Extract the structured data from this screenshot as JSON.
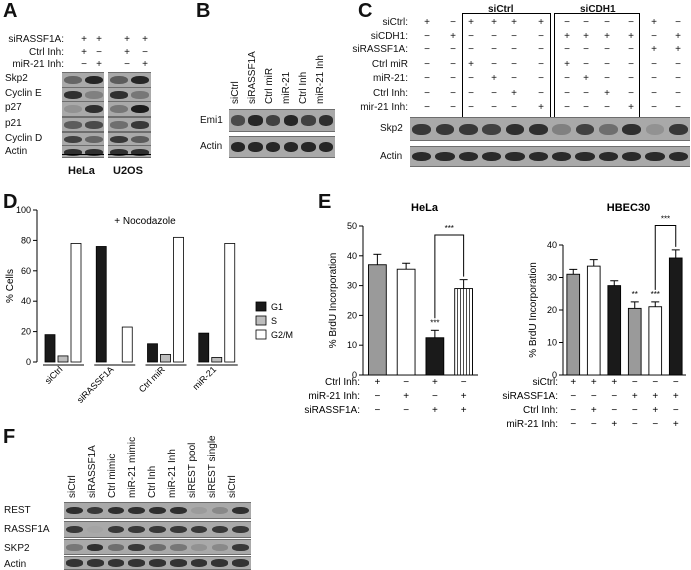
{
  "panels": {
    "a": "A",
    "b": "B",
    "c": "C",
    "d": "D",
    "e": "E",
    "f": "F"
  },
  "panel_a": {
    "conditions": [
      "siRASSF1A:",
      "Ctrl Inh:",
      "miR-21 Inh:"
    ],
    "symbols": [
      [
        "+",
        "+",
        "+",
        "+"
      ],
      [
        "+",
        "−",
        "+",
        "−"
      ],
      [
        "−",
        "+",
        "−",
        "+"
      ]
    ],
    "rows": [
      "Skp2",
      "Cyclin E",
      "p27",
      "p21",
      "Cyclin D",
      "Actin"
    ],
    "cell_lines": [
      "HeLa",
      "U2OS"
    ]
  },
  "panel_b": {
    "lanes": [
      "siCtrl",
      "siRASSF1A",
      "Ctrl miR",
      "miR-21",
      "Ctrl Inh",
      "miR-21 Inh"
    ],
    "rows": [
      "Emi1",
      "Actin"
    ]
  },
  "panel_c": {
    "group_labels": [
      "siCtrl",
      "siCDH1"
    ],
    "conditions": [
      "siCtrl:",
      "siCDH1:",
      "siRASSF1A:",
      "Ctrl miR",
      "miR-21:",
      "Ctrl Inh:",
      "mir-21 Inh:"
    ],
    "symbols": [
      [
        "+",
        "−",
        "+",
        "+",
        "+",
        "+",
        "−",
        "−",
        "−",
        "−",
        "+",
        "−"
      ],
      [
        "−",
        "+",
        "−",
        "−",
        "−",
        "−",
        "+",
        "+",
        "+",
        "+",
        "−",
        "+"
      ],
      [
        "−",
        "−",
        "−",
        "−",
        "−",
        "−",
        "−",
        "−",
        "−",
        "−",
        "+",
        "+"
      ],
      [
        "−",
        "−",
        "+",
        "−",
        "−",
        "−",
        "+",
        "−",
        "−",
        "−",
        "−",
        "−"
      ],
      [
        "−",
        "−",
        "−",
        "+",
        "−",
        "−",
        "−",
        "+",
        "−",
        "−",
        "−",
        "−"
      ],
      [
        "−",
        "−",
        "−",
        "−",
        "+",
        "−",
        "−",
        "−",
        "+",
        "−",
        "−",
        "−"
      ],
      [
        "−",
        "−",
        "−",
        "−",
        "−",
        "+",
        "−",
        "−",
        "−",
        "+",
        "−",
        "−"
      ]
    ],
    "rows": [
      "Skp2",
      "Actin"
    ]
  },
  "panel_f": {
    "lanes": [
      "siCtrl",
      "siRASSF1A",
      "Ctrl mimic",
      "miR-21 mimic",
      "Ctrl Inh",
      "miR-21 Inh",
      "siREST pool",
      "siREST single",
      "siCtrl"
    ],
    "rows": [
      "REST",
      "RASSF1A",
      "SKP2",
      "Actin"
    ]
  },
  "chart_data": [
    {
      "type": "bar",
      "annotation": "+ Nocodazole",
      "ylabel": "% Cells",
      "ylim": [
        0,
        100
      ],
      "yticks": [
        "0",
        "20",
        "40",
        "60",
        "80",
        "100"
      ],
      "categories": [
        "siCtrl",
        "siRASSF1A",
        "Ctrl miR",
        "miR-21"
      ],
      "series": [
        {
          "name": "G1",
          "values": [
            18,
            76,
            12,
            19
          ],
          "color": "#1a1a1a"
        },
        {
          "name": "S",
          "values": [
            4,
            0,
            5,
            3
          ],
          "color": "#bdbdbd"
        },
        {
          "name": "G2/M",
          "values": [
            78,
            23,
            82,
            78
          ],
          "color": "#ffffff"
        }
      ],
      "legend": "right"
    },
    {
      "type": "bar",
      "title": "HeLa",
      "ylabel": "% BrdU Incorporation",
      "ylim": [
        0,
        50
      ],
      "yticks": [
        "0",
        "10",
        "20",
        "30",
        "40",
        "50"
      ],
      "values": [
        37,
        35.5,
        12.5,
        29
      ],
      "errors": [
        3.5,
        2,
        2.5,
        3
      ],
      "fills": [
        "#9a9a9a",
        "#ffffff",
        "#1a1a1a",
        "hatch"
      ],
      "stars": [
        "",
        "",
        "***",
        ""
      ],
      "bracket_label": "***",
      "conditions": [
        "Ctrl Inh:",
        "miR-21 Inh:",
        "siRASSF1A:"
      ],
      "symbols": [
        [
          "+",
          "−",
          "+",
          "−"
        ],
        [
          "−",
          "+",
          "−",
          "+"
        ],
        [
          "−",
          "−",
          "+",
          "+"
        ]
      ]
    },
    {
      "type": "bar",
      "title": "HBEC30",
      "ylabel": "% BrdU Incorporation",
      "ylim": [
        0,
        40
      ],
      "yticks": [
        "0",
        "10",
        "20",
        "30",
        "40"
      ],
      "values": [
        31,
        33.5,
        27.5,
        20.5,
        21,
        36
      ],
      "errors": [
        1.5,
        2,
        1.5,
        2,
        1.5,
        2.5
      ],
      "fills": [
        "#9a9a9a",
        "#ffffff",
        "#1a1a1a",
        "#9a9a9a",
        "#ffffff",
        "#1a1a1a"
      ],
      "stars": [
        "",
        "",
        "",
        "**",
        "***",
        ""
      ],
      "bracket_label": "***",
      "conditions": [
        "siCtrl:",
        "siRASSF1A:",
        "Ctrl Inh:",
        "miR-21 Inh:"
      ],
      "symbols": [
        [
          "+",
          "+",
          "+",
          "−",
          "−",
          "−"
        ],
        [
          "−",
          "−",
          "−",
          "+",
          "+",
          "+"
        ],
        [
          "−",
          "+",
          "−",
          "−",
          "+",
          "−"
        ],
        [
          "−",
          "−",
          "+",
          "−",
          "−",
          "+"
        ]
      ]
    }
  ]
}
